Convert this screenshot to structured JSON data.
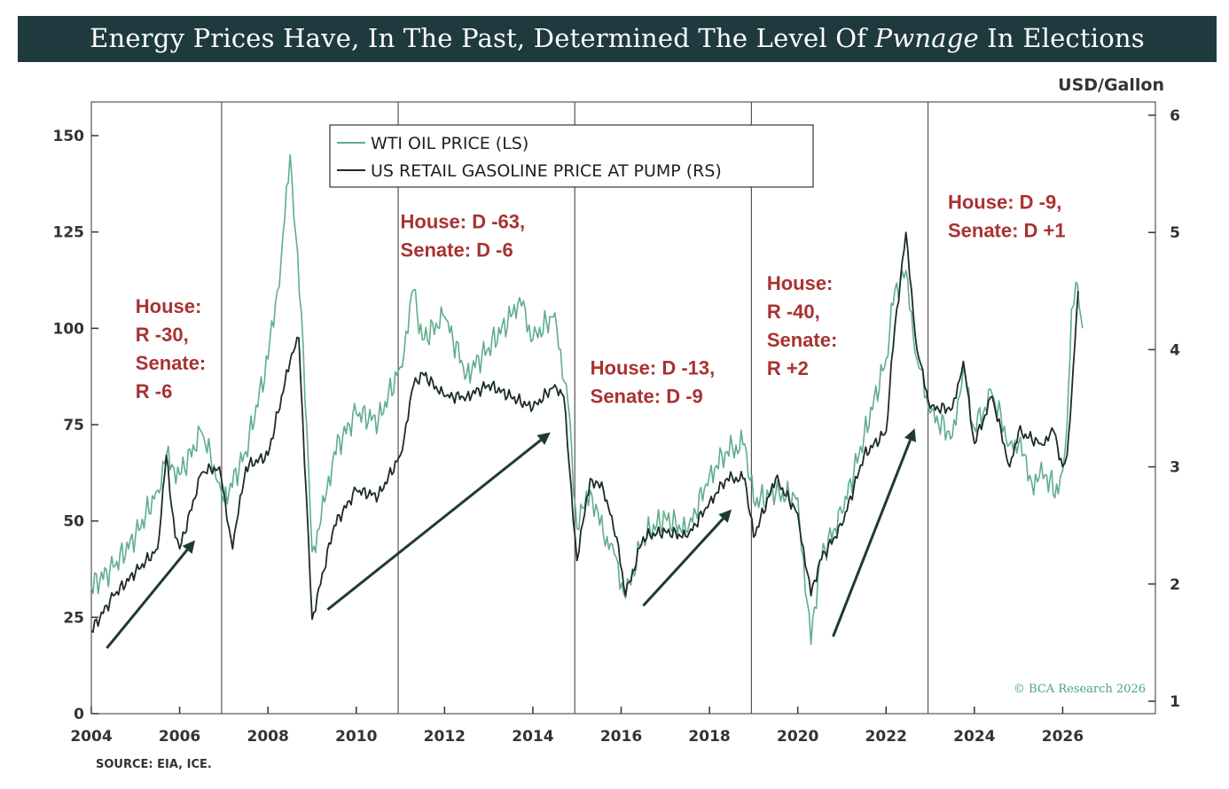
{
  "title": {
    "before": "Energy Prices Have, In The Past, Determined The Level Of ",
    "emphasis": "Pwnage",
    "after": " In Elections"
  },
  "source": "SOURCE: EIA, ICE.",
  "credit": "© BCA Research 2026",
  "colors": {
    "oil": "#5fae8c",
    "gas": "#1e2a2a",
    "annotation": "#a83232",
    "arrow": "#1e3a36",
    "header": "#1f3a3f"
  },
  "chart_data": {
    "type": "line",
    "xlabel": "",
    "left_axis": {
      "label": "",
      "ylim": [
        0,
        160
      ],
      "ticks": [
        0,
        25,
        50,
        75,
        100,
        125,
        150
      ]
    },
    "right_axis": {
      "label": "USD/Gallon",
      "ylim": [
        1,
        6
      ],
      "ticks": [
        1,
        2,
        3,
        4,
        5,
        6
      ]
    },
    "x_range": [
      2004,
      2028.1
    ],
    "x_ticks": [
      2004,
      2006,
      2008,
      2010,
      2012,
      2014,
      2016,
      2018,
      2020,
      2022,
      2024,
      2026
    ],
    "legend": {
      "position": "top-center",
      "entries": [
        {
          "name": "WTI OIL PRICE (LS)",
          "series": "oil"
        },
        {
          "name": "US RETAIL GASOLINE PRICE AT PUMP (RS)",
          "series": "gas"
        }
      ]
    },
    "election_lines": [
      2006.95,
      2010.95,
      2014.95,
      2018.95,
      2022.95
    ],
    "series": [
      {
        "name": "WTI OIL PRICE (LS)",
        "axis": "left",
        "key": "oil",
        "x": [
          2004.0,
          2004.5,
          2005.0,
          2005.5,
          2005.7,
          2006.0,
          2006.5,
          2006.9,
          2007.0,
          2007.5,
          2008.0,
          2008.3,
          2008.5,
          2008.8,
          2009.0,
          2009.2,
          2009.5,
          2010.0,
          2010.5,
          2011.0,
          2011.3,
          2011.5,
          2012.0,
          2012.5,
          2013.0,
          2013.5,
          2013.7,
          2014.0,
          2014.5,
          2014.8,
          2015.0,
          2015.3,
          2015.6,
          2015.8,
          2016.1,
          2016.5,
          2017.0,
          2017.5,
          2018.0,
          2018.4,
          2018.8,
          2019.0,
          2019.5,
          2020.0,
          2020.3,
          2020.5,
          2021.0,
          2021.5,
          2022.0,
          2022.2,
          2022.45,
          2022.7,
          2023.0,
          2023.5,
          2023.75,
          2024.0,
          2024.4,
          2024.8,
          2025.0,
          2025.3,
          2025.6,
          2025.9,
          2026.0,
          2026.1,
          2026.2,
          2026.3,
          2026.45
        ],
        "y": [
          33,
          38,
          46,
          58,
          67,
          62,
          73,
          60,
          55,
          68,
          92,
          118,
          145,
          95,
          42,
          50,
          68,
          78,
          76,
          90,
          110,
          97,
          103,
          88,
          95,
          103,
          108,
          97,
          104,
          80,
          48,
          58,
          46,
          44,
          30,
          46,
          51,
          47,
          62,
          68,
          70,
          55,
          57,
          56,
          18,
          40,
          52,
          72,
          92,
          110,
          115,
          92,
          78,
          72,
          90,
          74,
          83,
          70,
          70,
          60,
          62,
          57,
          63,
          75,
          105,
          112,
          100
        ]
      },
      {
        "name": "US RETAIL GASOLINE PRICE AT PUMP (RS)",
        "axis": "right",
        "key": "gas",
        "x": [
          2004.0,
          2004.5,
          2005.0,
          2005.5,
          2005.7,
          2005.9,
          2006.0,
          2006.5,
          2006.9,
          2007.2,
          2007.5,
          2008.0,
          2008.5,
          2008.7,
          2009.0,
          2009.5,
          2010.0,
          2010.5,
          2011.0,
          2011.3,
          2011.5,
          2012.0,
          2012.5,
          2013.0,
          2013.5,
          2014.0,
          2014.5,
          2014.7,
          2015.0,
          2015.3,
          2015.6,
          2015.9,
          2016.1,
          2016.5,
          2017.0,
          2017.5,
          2018.0,
          2018.4,
          2018.8,
          2019.0,
          2019.5,
          2020.0,
          2020.3,
          2020.5,
          2021.0,
          2021.5,
          2022.0,
          2022.2,
          2022.45,
          2022.7,
          2023.0,
          2023.5,
          2023.75,
          2024.0,
          2024.4,
          2024.8,
          2025.0,
          2025.5,
          2025.8,
          2026.0,
          2026.1,
          2026.2,
          2026.35
        ],
        "y": [
          1.6,
          1.9,
          2.1,
          2.3,
          3.1,
          2.4,
          2.3,
          2.95,
          3.0,
          2.3,
          3.0,
          3.1,
          3.9,
          4.1,
          1.7,
          2.5,
          2.8,
          2.75,
          3.1,
          3.7,
          3.8,
          3.6,
          3.6,
          3.7,
          3.6,
          3.5,
          3.7,
          3.6,
          2.2,
          2.9,
          2.8,
          2.4,
          1.9,
          2.4,
          2.45,
          2.4,
          2.7,
          2.9,
          2.9,
          2.4,
          2.9,
          2.6,
          1.9,
          2.2,
          2.5,
          3.1,
          3.3,
          4.2,
          5.0,
          4.0,
          3.5,
          3.5,
          3.9,
          3.2,
          3.6,
          3.0,
          3.3,
          3.2,
          3.3,
          3.0,
          3.1,
          3.6,
          4.5
        ]
      }
    ],
    "annotations": [
      {
        "lines": [
          "House:",
          "R -30,",
          "Senate:",
          "R -6"
        ],
        "x": 2005.0,
        "y": 104
      },
      {
        "lines": [
          "House: D -63,",
          "Senate: D -6"
        ],
        "x": 2011.0,
        "y": 126
      },
      {
        "lines": [
          "House: D -13,",
          "Senate: D -9"
        ],
        "x": 2015.3,
        "y": 88
      },
      {
        "lines": [
          "House:",
          "R -40,",
          "Senate:",
          "R +2"
        ],
        "x": 2019.3,
        "y": 110
      },
      {
        "lines": [
          "House: D -9,",
          "Senate: D +1"
        ],
        "x": 2023.4,
        "y": 131
      }
    ],
    "arrows": [
      {
        "from": [
          2004.35,
          17
        ],
        "to": [
          2006.35,
          45
        ]
      },
      {
        "from": [
          2009.35,
          27
        ],
        "to": [
          2014.4,
          73
        ]
      },
      {
        "from": [
          2016.5,
          28
        ],
        "to": [
          2018.5,
          53
        ]
      },
      {
        "from": [
          2020.8,
          20
        ],
        "to": [
          2022.65,
          74
        ]
      }
    ]
  }
}
